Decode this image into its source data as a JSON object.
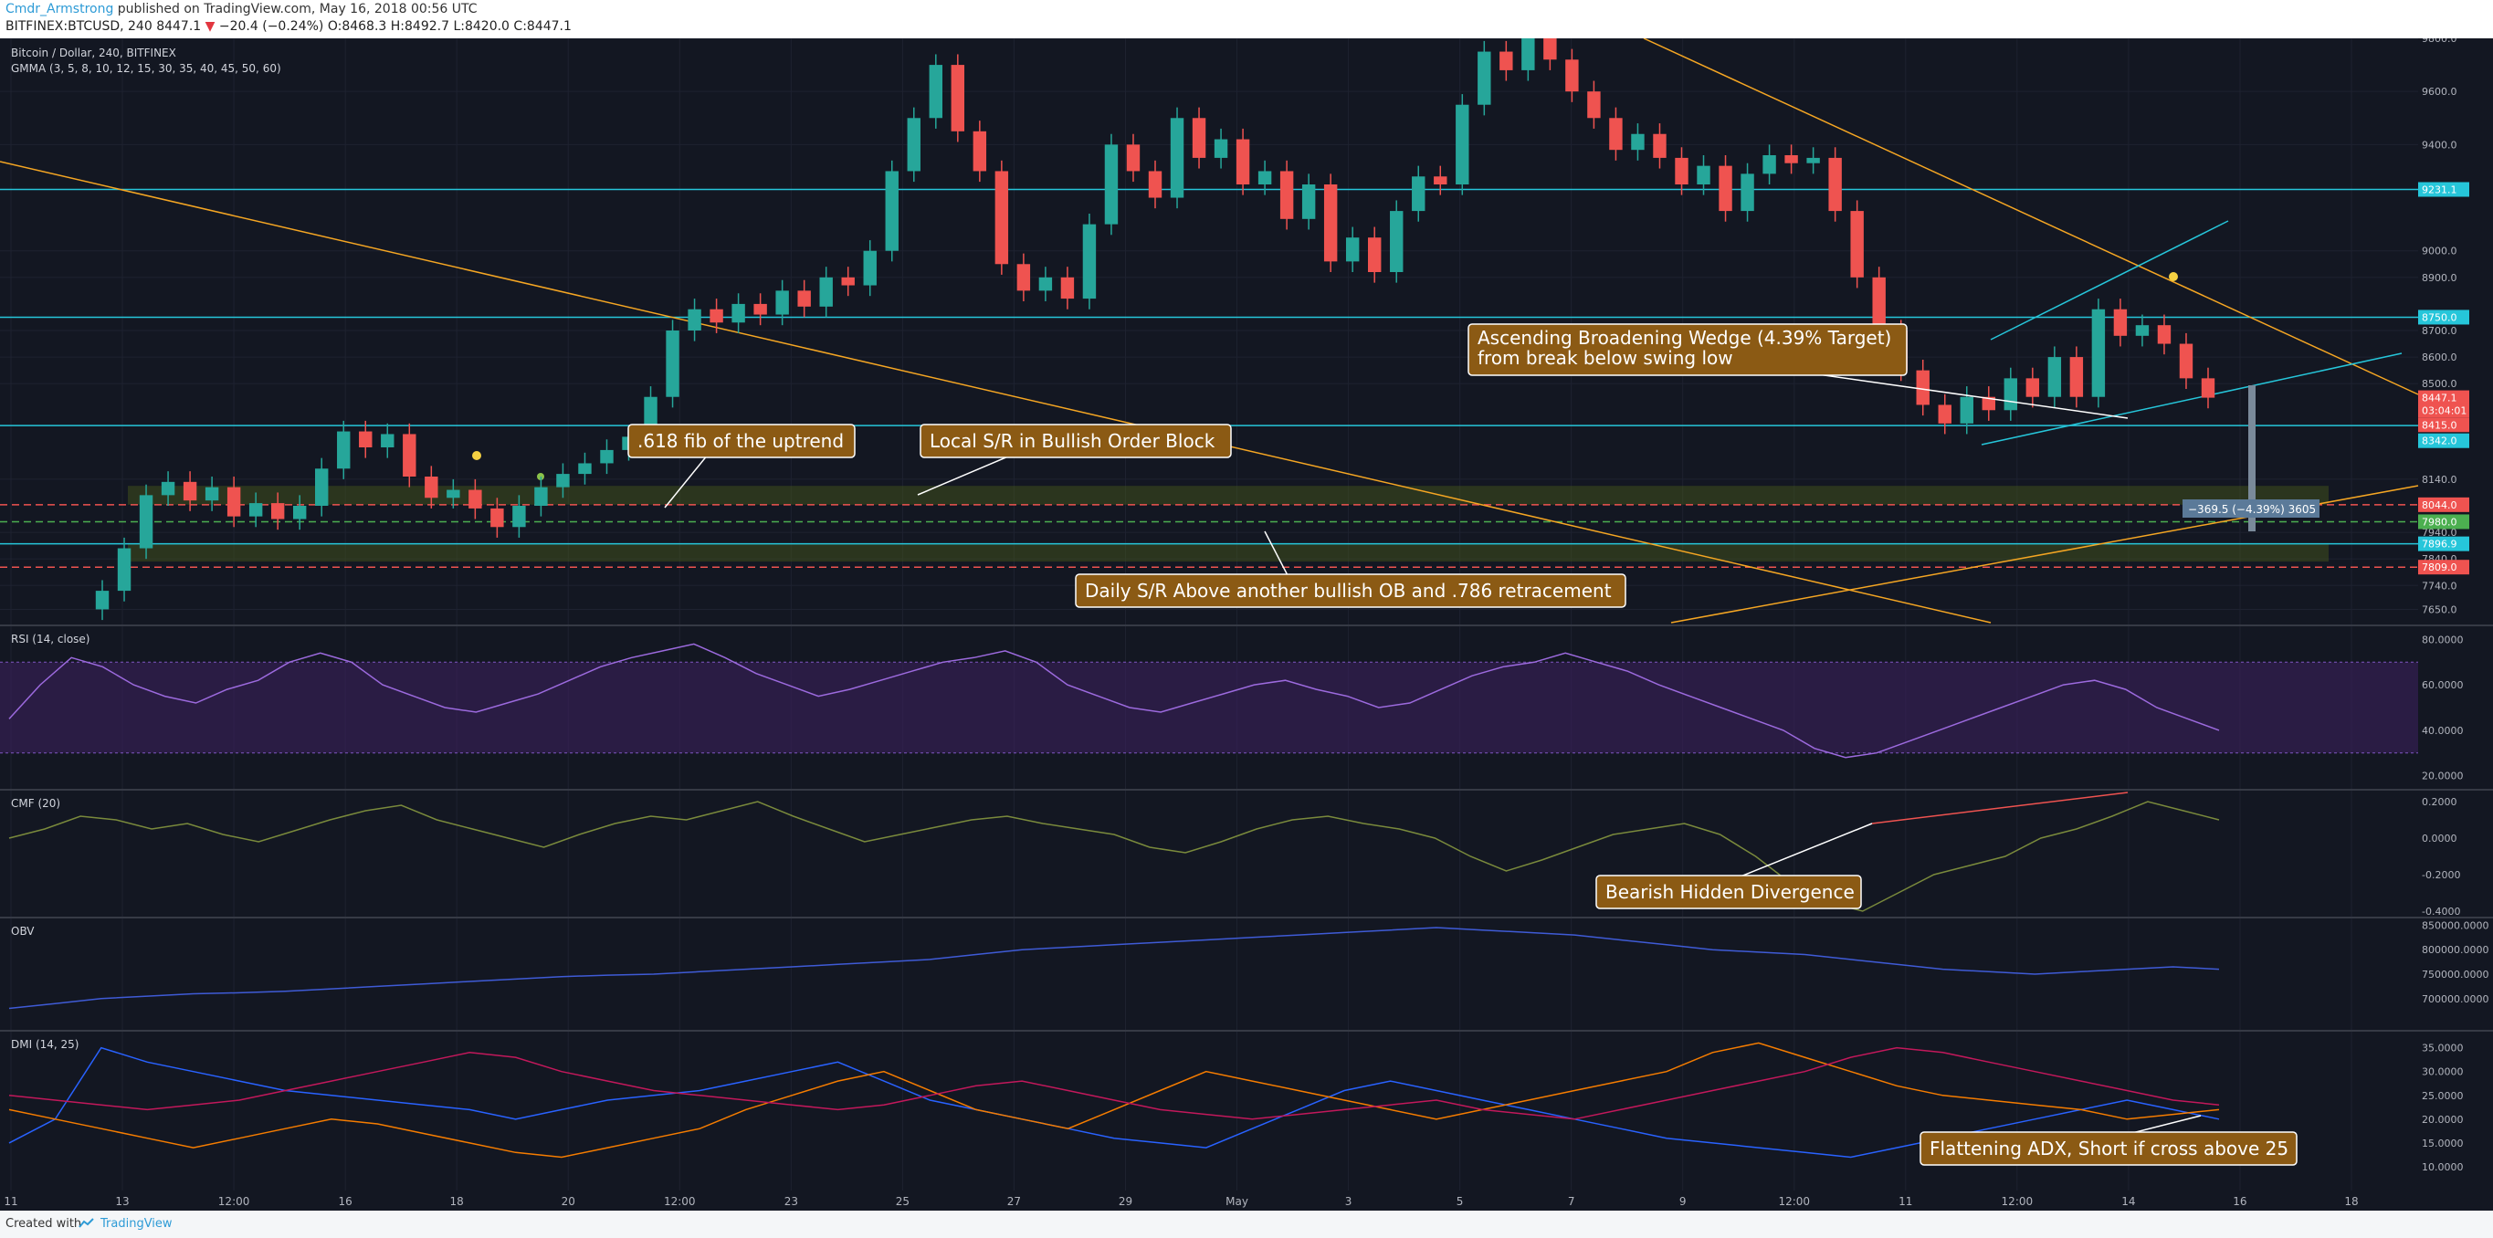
{
  "header": {
    "author": "Cmdr_Armstrong",
    "published_text": "published on TradingView.com, May 16, 2018 00:56 UTC",
    "symbol": "BITFINEX:BTCUSD, 240",
    "last": "8447.1",
    "change": "−20.4 (−0.24%)",
    "open": "O:8468.3",
    "high": "H:8492.7",
    "low": "L:8420.0",
    "close": "C:8447.1"
  },
  "footer": {
    "created_with": "Created with",
    "brand": "TradingView"
  },
  "colors": {
    "background": "#131722",
    "bull": "#26a69a",
    "bear": "#ef5350",
    "orange": "#f5a623",
    "cyan": "#26c6da",
    "annotation_bg": "#8b5a14"
  },
  "chart_data": {
    "type": "candlestick",
    "title": "Bitcoin / Dollar, 240, BITFINEX",
    "indicator": "GMMA (3, 5, 8, 10, 12, 15, 30, 35, 40, 45, 50, 60)",
    "x_tick_labels": [
      "11",
      "13",
      "12:00",
      "16",
      "18",
      "20",
      "12:00",
      "23",
      "25",
      "27",
      "29",
      "May",
      "3",
      "5",
      "7",
      "9",
      "12:00",
      "11",
      "12:00",
      "14",
      "16",
      "18"
    ],
    "ylim": [
      7600,
      9800
    ],
    "y_tick_labels": [
      "9800.0",
      "9600.0",
      "9400.0",
      "9000.0",
      "8900.0",
      "8700.0",
      "8600.0",
      "8500.0",
      "8140.0",
      "7940.0",
      "7840.0",
      "7740.0",
      "7650.0"
    ],
    "price_tags": [
      {
        "label": "9231.1",
        "value": 9231.1,
        "color": "#26c6da"
      },
      {
        "label": "8750.0",
        "value": 8750,
        "color": "#26c6da"
      },
      {
        "label": "8447.1",
        "value": 8447.1,
        "color": "#ef5350"
      },
      {
        "label": "03:04:01",
        "value": 8400,
        "color": "#ef5350"
      },
      {
        "label": "8415.0",
        "value": 8345,
        "color": "#ef5350"
      },
      {
        "label": "8342.0",
        "value": 8285,
        "color": "#26c6da"
      },
      {
        "label": "8044.0",
        "value": 8044,
        "color": "#ef5350"
      },
      {
        "label": "7980.0",
        "value": 7980,
        "color": "#4caf50"
      },
      {
        "label": "7896.9",
        "value": 7896.9,
        "color": "#26c6da"
      },
      {
        "label": "7809.0",
        "value": 7809,
        "color": "#ef5350"
      }
    ],
    "horizontal_levels": [
      {
        "value": 9231.1,
        "style": "solid",
        "color": "#26c6da"
      },
      {
        "value": 8750,
        "style": "solid",
        "color": "#26c6da"
      },
      {
        "value": 8342,
        "style": "solid",
        "color": "#26c6da"
      },
      {
        "value": 8044,
        "style": "dashed",
        "color": "#ef5350"
      },
      {
        "value": 7980,
        "style": "dashed",
        "color": "#4caf50"
      },
      {
        "value": 7896.9,
        "style": "solid",
        "color": "#26c6da"
      },
      {
        "value": 7809,
        "style": "dashed",
        "color": "#ef5350"
      }
    ],
    "order_blocks": [
      {
        "from": 8044,
        "to": 8115
      },
      {
        "from": 7830,
        "to": 7896.9
      }
    ],
    "candles": [
      {
        "o": 7650,
        "c": 7720
      },
      {
        "o": 7720,
        "c": 7880
      },
      {
        "o": 7880,
        "c": 8080
      },
      {
        "o": 8080,
        "c": 8130
      },
      {
        "o": 8130,
        "c": 8060
      },
      {
        "o": 8060,
        "c": 8110
      },
      {
        "o": 8110,
        "c": 8000
      },
      {
        "o": 8000,
        "c": 8050
      },
      {
        "o": 8050,
        "c": 7990
      },
      {
        "o": 7990,
        "c": 8040
      },
      {
        "o": 8040,
        "c": 8180
      },
      {
        "o": 8180,
        "c": 8320
      },
      {
        "o": 8320,
        "c": 8260
      },
      {
        "o": 8260,
        "c": 8310
      },
      {
        "o": 8310,
        "c": 8150
      },
      {
        "o": 8150,
        "c": 8070
      },
      {
        "o": 8070,
        "c": 8100
      },
      {
        "o": 8100,
        "c": 8030
      },
      {
        "o": 8030,
        "c": 7960
      },
      {
        "o": 7960,
        "c": 8040
      },
      {
        "o": 8040,
        "c": 8110
      },
      {
        "o": 8110,
        "c": 8160
      },
      {
        "o": 8160,
        "c": 8200
      },
      {
        "o": 8200,
        "c": 8250
      },
      {
        "o": 8250,
        "c": 8300
      },
      {
        "o": 8300,
        "c": 8450
      },
      {
        "o": 8450,
        "c": 8700
      },
      {
        "o": 8700,
        "c": 8780
      },
      {
        "o": 8780,
        "c": 8730
      },
      {
        "o": 8730,
        "c": 8800
      },
      {
        "o": 8800,
        "c": 8760
      },
      {
        "o": 8760,
        "c": 8850
      },
      {
        "o": 8850,
        "c": 8790
      },
      {
        "o": 8790,
        "c": 8900
      },
      {
        "o": 8900,
        "c": 8870
      },
      {
        "o": 8870,
        "c": 9000
      },
      {
        "o": 9000,
        "c": 9300
      },
      {
        "o": 9300,
        "c": 9500
      },
      {
        "o": 9500,
        "c": 9700
      },
      {
        "o": 9700,
        "c": 9450
      },
      {
        "o": 9450,
        "c": 9300
      },
      {
        "o": 9300,
        "c": 8950
      },
      {
        "o": 8950,
        "c": 8850
      },
      {
        "o": 8850,
        "c": 8900
      },
      {
        "o": 8900,
        "c": 8820
      },
      {
        "o": 8820,
        "c": 9100
      },
      {
        "o": 9100,
        "c": 9400
      },
      {
        "o": 9400,
        "c": 9300
      },
      {
        "o": 9300,
        "c": 9200
      },
      {
        "o": 9200,
        "c": 9500
      },
      {
        "o": 9500,
        "c": 9350
      },
      {
        "o": 9350,
        "c": 9420
      },
      {
        "o": 9420,
        "c": 9250
      },
      {
        "o": 9250,
        "c": 9300
      },
      {
        "o": 9300,
        "c": 9120
      },
      {
        "o": 9120,
        "c": 9250
      },
      {
        "o": 9250,
        "c": 8960
      },
      {
        "o": 8960,
        "c": 9050
      },
      {
        "o": 9050,
        "c": 8920
      },
      {
        "o": 8920,
        "c": 9150
      },
      {
        "o": 9150,
        "c": 9280
      },
      {
        "o": 9280,
        "c": 9250
      },
      {
        "o": 9250,
        "c": 9550
      },
      {
        "o": 9550,
        "c": 9750
      },
      {
        "o": 9750,
        "c": 9680
      },
      {
        "o": 9680,
        "c": 9800
      },
      {
        "o": 9800,
        "c": 9720
      },
      {
        "o": 9720,
        "c": 9600
      },
      {
        "o": 9600,
        "c": 9500
      },
      {
        "o": 9500,
        "c": 9380
      },
      {
        "o": 9380,
        "c": 9440
      },
      {
        "o": 9440,
        "c": 9350
      },
      {
        "o": 9350,
        "c": 9250
      },
      {
        "o": 9250,
        "c": 9320
      },
      {
        "o": 9320,
        "c": 9150
      },
      {
        "o": 9150,
        "c": 9290
      },
      {
        "o": 9290,
        "c": 9360
      },
      {
        "o": 9360,
        "c": 9330
      },
      {
        "o": 9330,
        "c": 9350
      },
      {
        "o": 9350,
        "c": 9150
      },
      {
        "o": 9150,
        "c": 8900
      },
      {
        "o": 8900,
        "c": 8700
      },
      {
        "o": 8700,
        "c": 8550
      },
      {
        "o": 8550,
        "c": 8420
      },
      {
        "o": 8420,
        "c": 8350
      },
      {
        "o": 8350,
        "c": 8450
      },
      {
        "o": 8450,
        "c": 8400
      },
      {
        "o": 8400,
        "c": 8520
      },
      {
        "o": 8520,
        "c": 8450
      },
      {
        "o": 8450,
        "c": 8600
      },
      {
        "o": 8600,
        "c": 8450
      },
      {
        "o": 8450,
        "c": 8780
      },
      {
        "o": 8780,
        "c": 8680
      },
      {
        "o": 8680,
        "c": 8720
      },
      {
        "o": 8720,
        "c": 8650
      },
      {
        "o": 8650,
        "c": 8520
      },
      {
        "o": 8520,
        "c": 8447
      }
    ],
    "annotations": [
      {
        "text": ".618 fib of the uptrend",
        "anchor_value": 7980
      },
      {
        "text": "Local S/R in Bullish Order Block",
        "anchor_value": 8044
      },
      {
        "text": "Daily S/R Above another bullish OB and .786 retracement",
        "anchor_value": 7896.9
      },
      {
        "text": "Ascending Broadening Wedge (4.39% Target)",
        "line2": "from break below swing low",
        "anchor_value": 8342
      },
      {
        "text": "Bearish Hidden Divergence",
        "anchor_value": 0.08
      },
      {
        "text": "Flattening ADX, Short if cross above 25",
        "anchor_value": 20
      }
    ],
    "measure_label": "−369.5 (−4.39%)  3605",
    "panes": [
      {
        "name": "RSI (14, close)",
        "ylim": [
          15,
          85
        ],
        "band": [
          30,
          70
        ],
        "tick_labels": [
          "80.0000",
          "60.0000",
          "40.0000",
          "20.0000"
        ],
        "tick_values": [
          80,
          60,
          40,
          20
        ],
        "values": [
          45,
          60,
          72,
          68,
          60,
          55,
          52,
          58,
          62,
          70,
          74,
          70,
          60,
          55,
          50,
          48,
          52,
          56,
          62,
          68,
          72,
          75,
          78,
          72,
          65,
          60,
          55,
          58,
          62,
          66,
          70,
          72,
          75,
          70,
          60,
          55,
          50,
          48,
          52,
          56,
          60,
          62,
          58,
          55,
          50,
          52,
          58,
          64,
          68,
          70,
          74,
          70,
          66,
          60,
          55,
          50,
          45,
          40,
          32,
          28,
          30,
          35,
          40,
          45,
          50,
          55,
          60,
          62,
          58,
          50,
          45,
          40
        ]
      },
      {
        "name": "CMF (20)",
        "ylim": [
          -0.42,
          0.25
        ],
        "tick_labels": [
          "0.2000",
          "0.0000",
          "-0.2000",
          "-0.4000"
        ],
        "tick_values": [
          0.2,
          0,
          -0.2,
          -0.4
        ],
        "values": [
          0.0,
          0.05,
          0.12,
          0.1,
          0.05,
          0.08,
          0.02,
          -0.02,
          0.04,
          0.1,
          0.15,
          0.18,
          0.1,
          0.05,
          0.0,
          -0.05,
          0.02,
          0.08,
          0.12,
          0.1,
          0.15,
          0.2,
          0.12,
          0.05,
          -0.02,
          0.02,
          0.06,
          0.1,
          0.12,
          0.08,
          0.05,
          0.02,
          -0.05,
          -0.08,
          -0.02,
          0.05,
          0.1,
          0.12,
          0.08,
          0.05,
          0.0,
          -0.1,
          -0.18,
          -0.12,
          -0.05,
          0.02,
          0.05,
          0.08,
          0.02,
          -0.1,
          -0.25,
          -0.35,
          -0.4,
          -0.3,
          -0.2,
          -0.15,
          -0.1,
          0.0,
          0.05,
          0.12,
          0.2,
          0.15,
          0.1
        ]
      },
      {
        "name": "OBV",
        "ylim": [
          640000,
          860000
        ],
        "tick_labels": [
          "850000.0000",
          "800000.0000",
          "750000.0000",
          "700000.0000"
        ],
        "tick_values": [
          850000,
          800000,
          750000,
          700000
        ],
        "values": [
          680000,
          690000,
          700000,
          705000,
          710000,
          712000,
          715000,
          720000,
          725000,
          730000,
          735000,
          740000,
          745000,
          748000,
          750000,
          755000,
          760000,
          765000,
          770000,
          775000,
          780000,
          790000,
          800000,
          805000,
          810000,
          815000,
          820000,
          825000,
          830000,
          835000,
          840000,
          845000,
          840000,
          835000,
          830000,
          820000,
          810000,
          800000,
          795000,
          790000,
          780000,
          770000,
          760000,
          755000,
          750000,
          755000,
          760000,
          765000,
          760000
        ]
      },
      {
        "name": "DMI (14, 25)",
        "ylim": [
          5,
          38
        ],
        "tick_labels": [
          "35.0000",
          "30.0000",
          "25.0000",
          "20.0000",
          "15.0000",
          "10.0000"
        ],
        "tick_values": [
          35,
          30,
          25,
          20,
          15,
          10
        ],
        "series": [
          {
            "name": "",
            "color": "#2962ff",
            "values": [
              15,
              20,
              35,
              32,
              30,
              28,
              26,
              25,
              24,
              23,
              22,
              20,
              22,
              24,
              25,
              26,
              28,
              30,
              32,
              28,
              24,
              22,
              20,
              18,
              16,
              15,
              14,
              18,
              22,
              26,
              28,
              26,
              24,
              22,
              20,
              18,
              16,
              15,
              14,
              13,
              12,
              14,
              16,
              18,
              20,
              22,
              24,
              22,
              20
            ]
          },
          {
            "name": "",
            "color": "#f57c00",
            "values": [
              22,
              20,
              18,
              16,
              14,
              16,
              18,
              20,
              19,
              17,
              15,
              13,
              12,
              14,
              16,
              18,
              22,
              25,
              28,
              30,
              26,
              22,
              20,
              18,
              22,
              26,
              30,
              28,
              26,
              24,
              22,
              20,
              22,
              24,
              26,
              28,
              30,
              34,
              36,
              33,
              30,
              27,
              25,
              24,
              23,
              22,
              20,
              21,
              22
            ]
          },
          {
            "name": "",
            "color": "#c2185b",
            "values": [
              25,
              24,
              23,
              22,
              23,
              24,
              26,
              28,
              30,
              32,
              34,
              33,
              30,
              28,
              26,
              25,
              24,
              23,
              22,
              23,
              25,
              27,
              28,
              26,
              24,
              22,
              21,
              20,
              21,
              22,
              23,
              24,
              22,
              21,
              20,
              22,
              24,
              26,
              28,
              30,
              33,
              35,
              34,
              32,
              30,
              28,
              26,
              24,
              23
            ]
          }
        ]
      }
    ]
  }
}
